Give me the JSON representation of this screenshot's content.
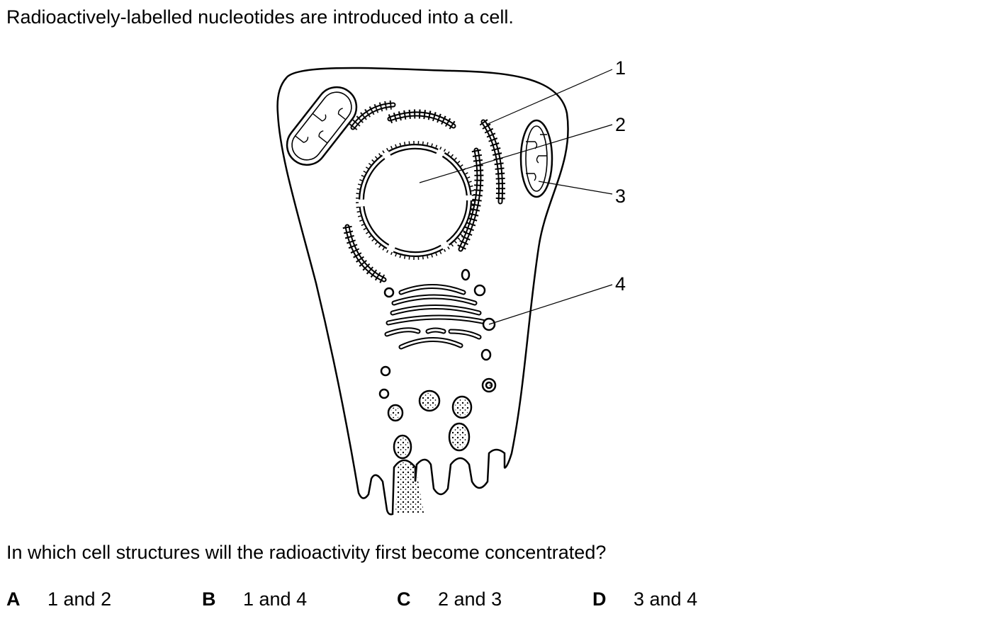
{
  "intro_text": "Radioactively-labelled nucleotides are introduced into a cell.",
  "diagram": {
    "labels": [
      "1",
      "2",
      "3",
      "4"
    ]
  },
  "question_text": "In which cell structures will the radioactivity first become concentrated?",
  "options": [
    {
      "letter": "A",
      "text": "1 and 2"
    },
    {
      "letter": "B",
      "text": "1 and 4"
    },
    {
      "letter": "C",
      "text": "2 and 3"
    },
    {
      "letter": "D",
      "text": "3 and 4"
    }
  ]
}
